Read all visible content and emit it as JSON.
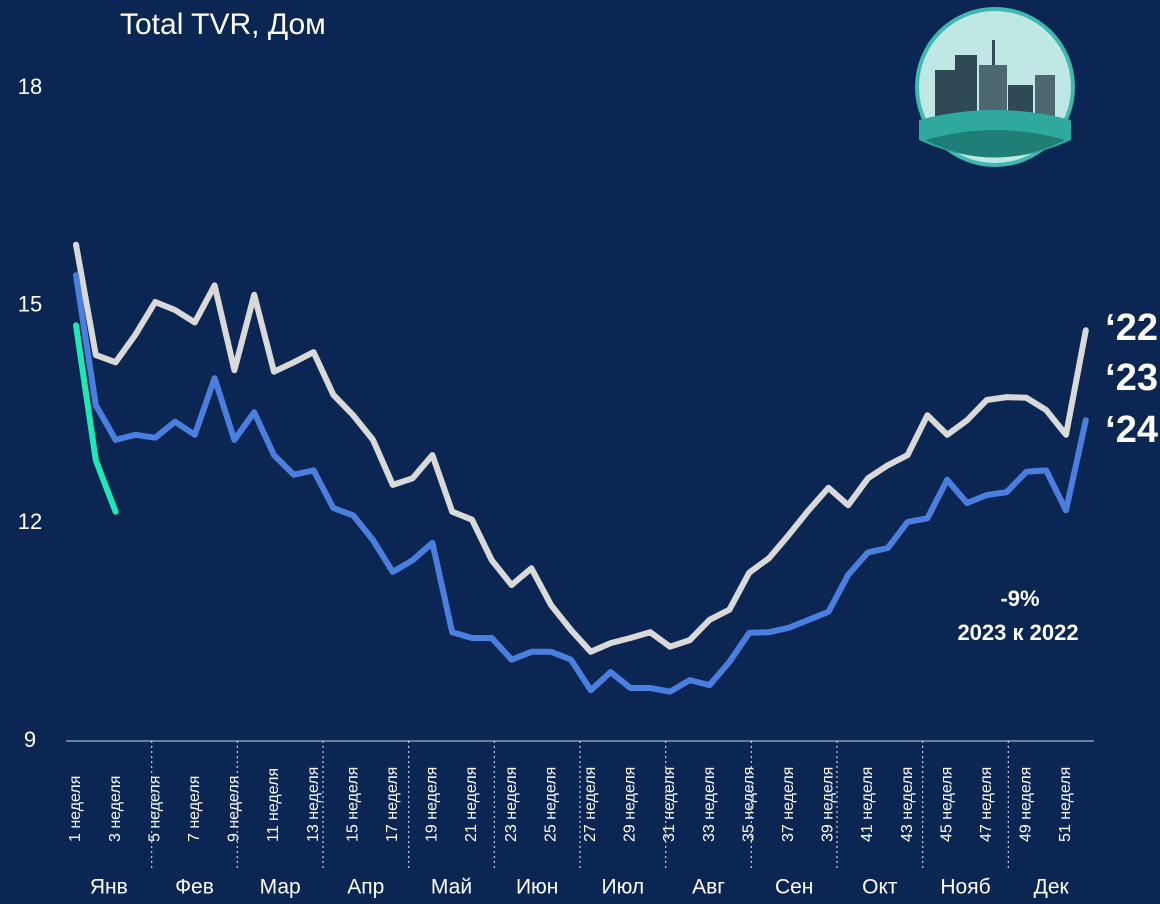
{
  "chart_data": {
    "type": "line",
    "title": "Total TVR, Дом",
    "categories": [
      "1 неделя",
      null,
      "3 неделя",
      null,
      "5 неделя",
      null,
      "7 неделя",
      null,
      "9 неделя",
      null,
      "11 неделя",
      null,
      "13 неделя",
      null,
      "15 неделя",
      null,
      "17 неделя",
      null,
      "19 неделя",
      null,
      "21 неделя",
      null,
      "23 неделя",
      null,
      "25 неделя",
      null,
      "27 неделя",
      null,
      "29 неделя",
      null,
      "31 неделя",
      null,
      "33 неделя",
      null,
      "35 неделя",
      null,
      "37 неделя",
      null,
      "39 неделя",
      null,
      "41 неделя",
      null,
      "43 неделя",
      null,
      "45 неделя",
      null,
      "47 неделя",
      null,
      "49 неделя",
      null,
      "51 неделя",
      null
    ],
    "months": [
      "Янв",
      "Фев",
      "Мар",
      "Апр",
      "Май",
      "Июн",
      "Июл",
      "Авг",
      "Сен",
      "Окт",
      "Нояб",
      "Дек"
    ],
    "series": [
      {
        "name": "‘22",
        "color": "#d9d9d9",
        "values": [
          15.84,
          14.32,
          14.22,
          14.6,
          15.05,
          14.94,
          14.77,
          15.28,
          14.11,
          15.15,
          14.09,
          14.22,
          14.36,
          13.77,
          13.49,
          13.15,
          12.53,
          12.62,
          12.94,
          12.16,
          12.05,
          11.49,
          11.15,
          11.38,
          10.87,
          10.53,
          10.23,
          10.35,
          10.42,
          10.5,
          10.3,
          10.39,
          10.67,
          10.81,
          11.32,
          11.52,
          11.84,
          12.18,
          12.49,
          12.25,
          12.62,
          12.8,
          12.94,
          13.49,
          13.22,
          13.42,
          13.7,
          13.74,
          13.73,
          13.56,
          13.22,
          14.66
        ]
      },
      {
        "name": "‘23",
        "color": "#4a7fe0",
        "values": [
          15.42,
          13.63,
          13.15,
          13.22,
          13.18,
          13.4,
          13.22,
          14.0,
          13.15,
          13.53,
          12.94,
          12.67,
          12.73,
          12.21,
          12.11,
          11.77,
          11.33,
          11.49,
          11.73,
          10.5,
          10.42,
          10.42,
          10.12,
          10.23,
          10.23,
          10.12,
          9.7,
          9.95,
          9.73,
          9.73,
          9.68,
          9.84,
          9.77,
          10.09,
          10.49,
          10.5,
          10.56,
          10.67,
          10.78,
          11.29,
          11.6,
          11.66,
          12.02,
          12.07,
          12.6,
          12.28,
          12.39,
          12.43,
          12.71,
          12.73,
          12.18,
          13.42
        ]
      },
      {
        "name": "‘24",
        "color": "#1de9b6",
        "values": [
          14.73,
          12.87,
          12.16,
          null,
          null,
          null,
          null,
          null,
          null,
          null,
          null,
          null,
          null,
          null,
          null,
          null,
          null,
          null,
          null,
          null,
          null,
          null,
          null,
          null,
          null,
          null,
          null,
          null,
          null,
          null,
          null,
          null,
          null,
          null,
          null,
          null,
          null,
          null,
          null,
          null,
          null,
          null,
          null,
          null,
          null,
          null,
          null,
          null,
          null,
          null,
          null,
          null
        ]
      }
    ],
    "annotation_value": "-9%",
    "annotation_text": "2023 к 2022",
    "annotation_value_color": "#e8442e",
    "annotation_text_color": "#1de9b6",
    "ylim": [
      9,
      18
    ],
    "yticks": [
      9,
      12,
      15,
      18
    ]
  }
}
